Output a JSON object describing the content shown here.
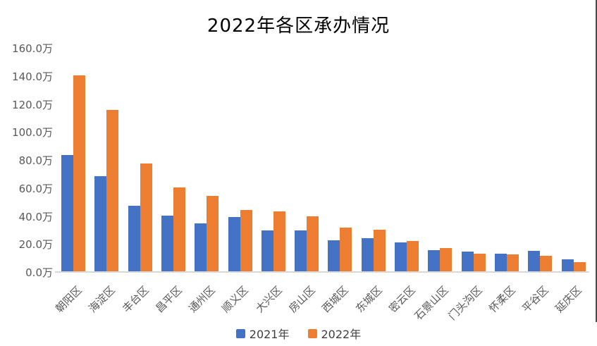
{
  "chart_data": {
    "type": "bar",
    "title": "2022年各区承办情况",
    "categories": [
      "朝阳区",
      "海淀区",
      "丰台区",
      "昌平区",
      "通州区",
      "顺义区",
      "大兴区",
      "房山区",
      "西城区",
      "东城区",
      "密云区",
      "石景山区",
      "门头沟区",
      "怀柔区",
      "平谷区",
      "延庆区"
    ],
    "series": [
      {
        "name": "2021年",
        "color": "#4472C4",
        "values": [
          83,
          68,
          47,
          40,
          34,
          38.5,
          29,
          29,
          22,
          23.5,
          20.5,
          15,
          14,
          12.5,
          14.5,
          8.5
        ]
      },
      {
        "name": "2022年",
        "color": "#ED7D31",
        "values": [
          140,
          115,
          77,
          60,
          54,
          44,
          43,
          39,
          31,
          29.5,
          21.5,
          16.5,
          12.5,
          12,
          11,
          6.5
        ]
      }
    ],
    "unit": "万",
    "ylim": [
      0,
      160
    ],
    "ytick_step": 20,
    "ytick_labels": [
      "0.0万",
      "20.0万",
      "40.0万",
      "60.0万",
      "80.0万",
      "100.0万",
      "120.0万",
      "140.0万",
      "160.0万"
    ],
    "grid": false,
    "legend_position": "bottom",
    "xlabel": "",
    "ylabel": ""
  },
  "colors": {
    "bar_2021": "#4472C4",
    "bar_2022": "#ED7D31",
    "axis_line": "#D9D9D9",
    "tick_text": "#595959",
    "title_text": "#000000"
  }
}
